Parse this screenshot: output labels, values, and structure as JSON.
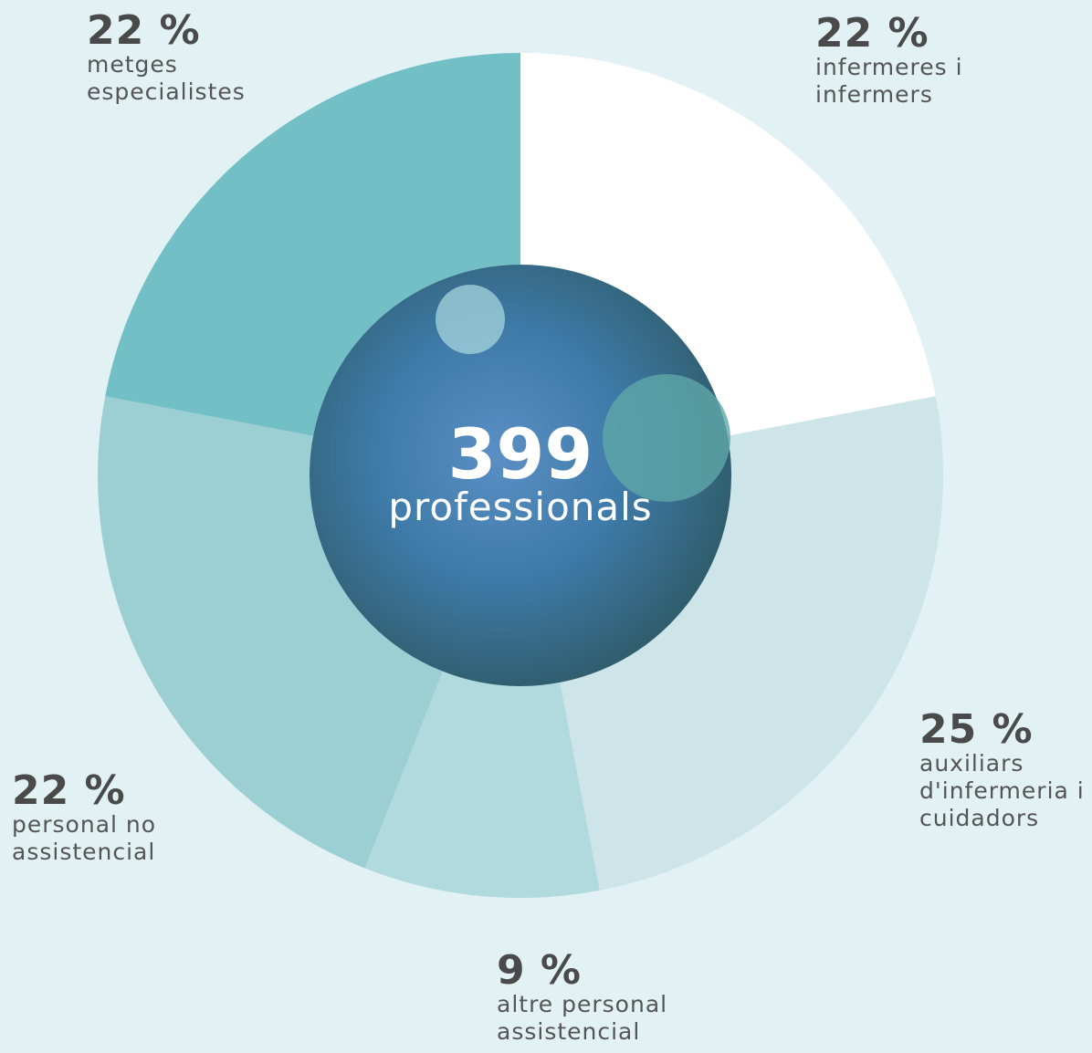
{
  "chart_data": {
    "type": "donut",
    "categories": [
      "infermeres i infermers",
      "auxiliars d'infermeria i cuidadors",
      "altre personal assistencial",
      "personal no assistencial",
      "metges especialistes"
    ],
    "values": [
      22,
      25,
      9,
      22,
      22
    ],
    "value_labels": [
      "22 %",
      "25 %",
      "9 %",
      "22 %",
      "22 %"
    ],
    "colors": [
      "#ffffff",
      "#cde5e9",
      "#b1dade",
      "#9bcfd4",
      "#72c0c6"
    ],
    "center_value": 399,
    "center_label": "professionals"
  }
}
